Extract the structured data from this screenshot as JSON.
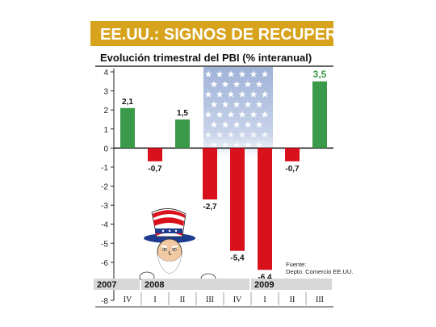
{
  "chart_data": {
    "type": "bar",
    "title": "EE.UU.: SIGNOS DE RECUPERACIÓN",
    "subtitle": "Evolución trimestral del PBI (% interanual)",
    "xlabel": "",
    "ylabel": "",
    "categories": [
      "IV",
      "I",
      "II",
      "III",
      "IV",
      "I",
      "II",
      "III"
    ],
    "values": [
      2.1,
      -0.7,
      1.5,
      -2.7,
      -5.4,
      -6.4,
      -0.7,
      3.5
    ],
    "value_labels": [
      "2,1",
      "-0,7",
      "1,5",
      "-2,7",
      "-5,4",
      "-6,4",
      "-0,7",
      "3,5"
    ],
    "year_labels": [
      {
        "label": "2007",
        "start": 0,
        "end": 0
      },
      {
        "label": "2008",
        "start": 1,
        "end": 4
      },
      {
        "label": "2009",
        "start": 5,
        "end": 7
      }
    ],
    "y_ticks": [
      "4",
      "3",
      "2",
      "1",
      "0",
      "-1",
      "-2",
      "-3",
      "-4",
      "-5",
      "-6",
      "-7",
      "-8"
    ],
    "ylim": [
      -8,
      4
    ],
    "grid": false,
    "legend": "none",
    "colors": {
      "positive": "#3b9a4a",
      "negative": "#d8111c",
      "highlight_label": "#3b9a4a",
      "title_bg": "#d8a31c",
      "year_band": "#d7d7d7",
      "flag_band": "#a9b9d9"
    },
    "source_note": [
      "Fuente:",
      "Depto. Comercio EE.UU."
    ]
  }
}
